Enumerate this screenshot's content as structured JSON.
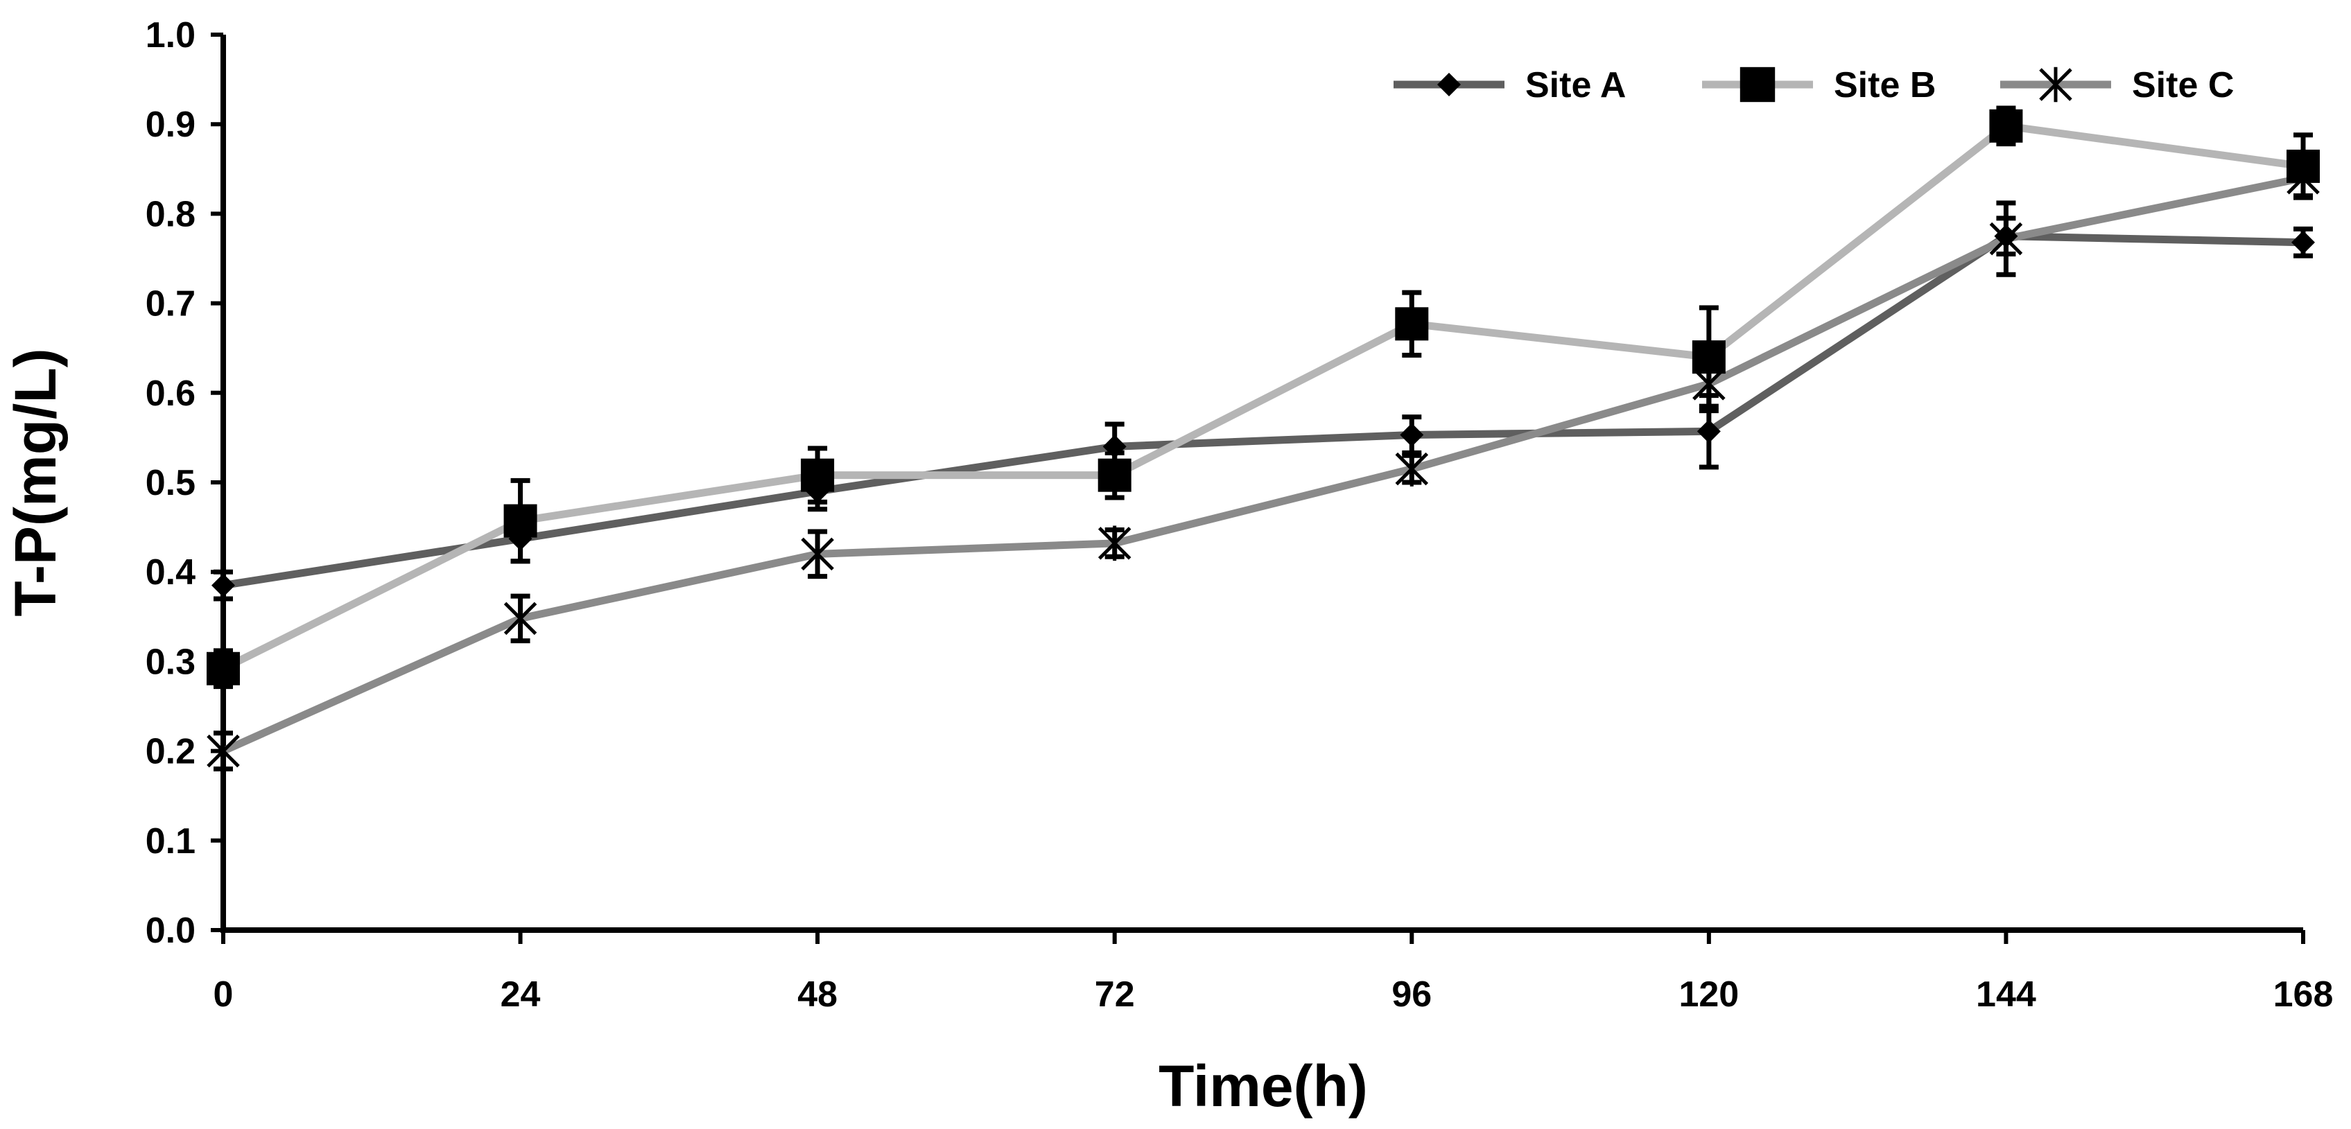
{
  "chart_data": {
    "type": "line",
    "title": "",
    "xlabel": "Time(h)",
    "ylabel": "T-P(mg/L)",
    "x": [
      0,
      24,
      48,
      72,
      96,
      120,
      144,
      168
    ],
    "xlim": [
      0,
      168
    ],
    "ylim": [
      0.0,
      1.0
    ],
    "yticks": [
      0.0,
      0.1,
      0.2,
      0.3,
      0.4,
      0.5,
      0.6,
      0.7,
      0.8,
      0.9,
      1.0
    ],
    "ytick_labels": [
      "0.0",
      "0.1",
      "0.2",
      "0.3",
      "0.4",
      "0.5",
      "0.6",
      "0.7",
      "0.8",
      "0.9",
      "1.0"
    ],
    "xtick_labels": [
      "0",
      "24",
      "48",
      "72",
      "96",
      "120",
      "144",
      "168"
    ],
    "grid": false,
    "legend_position": "top-right",
    "series": [
      {
        "name": "Site A",
        "marker": "diamond",
        "color": "#5f5f5f",
        "values": [
          0.385,
          0.437,
          0.49,
          0.54,
          0.553,
          0.557,
          0.775,
          0.768
        ],
        "errors": [
          0.015,
          0.025,
          0.02,
          0.025,
          0.02,
          0.04,
          0.02,
          0.015
        ]
      },
      {
        "name": "Site B",
        "marker": "square",
        "color": "#b5b5b5",
        "values": [
          0.292,
          0.457,
          0.508,
          0.508,
          0.677,
          0.64,
          0.898,
          0.853
        ],
        "errors": [
          0.02,
          0.045,
          0.03,
          0.025,
          0.035,
          0.055,
          0.02,
          0.035
        ]
      },
      {
        "name": "Site C",
        "marker": "star",
        "color": "#8a8a8a",
        "values": [
          0.2,
          0.348,
          0.42,
          0.432,
          0.515,
          0.61,
          0.772,
          0.84
        ],
        "errors": [
          0.02,
          0.025,
          0.025,
          0.015,
          0.015,
          0.03,
          0.04,
          0.02
        ]
      }
    ]
  }
}
